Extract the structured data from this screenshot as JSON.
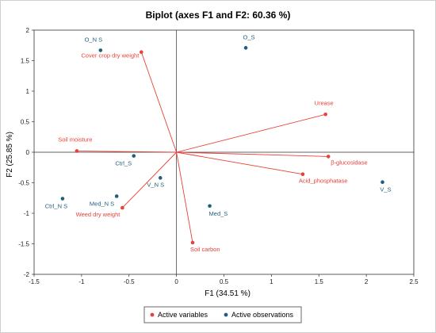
{
  "chart_data": {
    "type": "scatter",
    "title": "Biplot (axes F1 and F2: 60.36 %)",
    "xlabel": "F1 (34.51 %)",
    "ylabel": "F2 (25.85 %)",
    "xlim": [
      -1.5,
      2.5
    ],
    "ylim": [
      -2,
      2
    ],
    "x_ticks": [
      "-1.5",
      "-1",
      "-0.5",
      "0",
      "0.5",
      "1",
      "1.5",
      "2",
      "2.5"
    ],
    "y_ticks": [
      "2",
      "1.5",
      "1",
      "0.5",
      "0",
      "-0.5",
      "-1",
      "-1.5",
      "-2"
    ],
    "grid": false,
    "legend_position": "bottom",
    "colors": {
      "variables": "#e8403a",
      "observations": "#1f5f7a"
    },
    "series": [
      {
        "name": "Active variables",
        "points": [
          {
            "label": "Cover crop dry weight",
            "x": -0.37,
            "y": 1.64
          },
          {
            "label": "Urease",
            "x": 1.57,
            "y": 0.62
          },
          {
            "label": "Soil moisture",
            "x": -1.05,
            "y": 0.02
          },
          {
            "label": "β-glucosidase",
            "x": 1.6,
            "y": -0.07
          },
          {
            "label": "Acid_phosphatase",
            "x": 1.33,
            "y": -0.36
          },
          {
            "label": "Weed dry weight",
            "x": -0.57,
            "y": -0.91
          },
          {
            "label": "Soil carbon",
            "x": 0.17,
            "y": -1.48
          }
        ]
      },
      {
        "name": "Active observations",
        "points": [
          {
            "label": "O_N S",
            "x": -0.8,
            "y": 1.67
          },
          {
            "label": "O_S",
            "x": 0.73,
            "y": 1.71
          },
          {
            "label": "Ctrl_S",
            "x": -0.45,
            "y": -0.06
          },
          {
            "label": "V_N S",
            "x": -0.17,
            "y": -0.42
          },
          {
            "label": "Med_N S",
            "x": -0.63,
            "y": -0.72
          },
          {
            "label": "Ctrl_N S",
            "x": -1.2,
            "y": -0.76
          },
          {
            "label": "Med_S",
            "x": 0.35,
            "y": -0.88
          },
          {
            "label": "V_S",
            "x": 2.17,
            "y": -0.49
          }
        ]
      }
    ]
  }
}
